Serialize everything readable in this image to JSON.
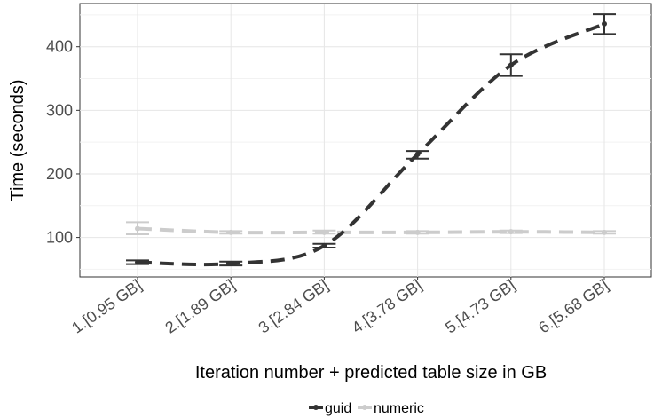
{
  "chart_data": {
    "type": "line",
    "title": "",
    "xlabel": "Iteration number + predicted table size in GB",
    "ylabel": "Time (seconds)",
    "categories": [
      "1.[0.95 GB]",
      "2.[1.89 GB]",
      "3.[2.84 GB]",
      "4.[3.78 GB]",
      "5.[4.73 GB]",
      "6.[5.68 GB]"
    ],
    "ylim": [
      38,
      468
    ],
    "yticks": [
      100,
      200,
      300,
      400
    ],
    "grid": true,
    "legend_position": "bottom",
    "series": [
      {
        "name": "guid",
        "color": "#333333",
        "values": [
          61,
          59,
          87,
          231,
          371,
          436
        ],
        "err_low": [
          58,
          56,
          84,
          224,
          354,
          420
        ],
        "err_high": [
          64,
          62,
          90,
          236,
          388,
          451
        ]
      },
      {
        "name": "numeric",
        "color": "#cccccc",
        "values": [
          114,
          108,
          108,
          108,
          109,
          108
        ],
        "err_low": [
          105,
          106,
          106,
          106,
          107,
          106
        ],
        "err_high": [
          124,
          110,
          111,
          110,
          111,
          110
        ]
      }
    ]
  }
}
